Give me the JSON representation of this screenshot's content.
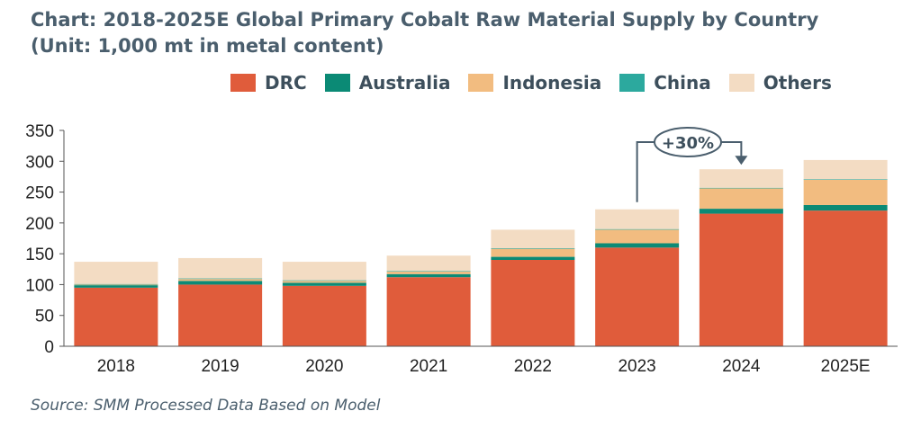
{
  "chart_data": {
    "type": "bar",
    "stacked": true,
    "title_line1": "Chart: 2018-2025E Global Primary Cobalt Raw Material Supply by Country",
    "title_line2": "(Unit: 1,000 mt in metal content)",
    "categories": [
      "2018",
      "2019",
      "2020",
      "2021",
      "2022",
      "2023",
      "2024",
      "2025E"
    ],
    "series": [
      {
        "name": "DRC",
        "color": "#e05c3b",
        "values": [
          95,
          100,
          98,
          112,
          140,
          160,
          215,
          220
        ]
      },
      {
        "name": "Australia",
        "color": "#0b8a75",
        "values": [
          4,
          6,
          5,
          5,
          5,
          7,
          8,
          9
        ]
      },
      {
        "name": "Indonesia",
        "color": "#f2bc80",
        "values": [
          1,
          3,
          3,
          4,
          13,
          22,
          33,
          41
        ]
      },
      {
        "name": "China",
        "color": "#2ca99e",
        "values": [
          1,
          1,
          1,
          1,
          1,
          1,
          1,
          1
        ]
      },
      {
        "name": "Others",
        "color": "#f3dcc3",
        "values": [
          36,
          33,
          30,
          25,
          30,
          32,
          30,
          31
        ]
      }
    ],
    "ylim": [
      0,
      350
    ],
    "yticks": [
      0,
      50,
      100,
      150,
      200,
      250,
      300,
      350
    ],
    "annotation": {
      "text": "+30%",
      "from": "2023",
      "to": "2024"
    },
    "legend_position": "top",
    "grid": false
  },
  "source": "Source: SMM Processed Data Based on Model"
}
